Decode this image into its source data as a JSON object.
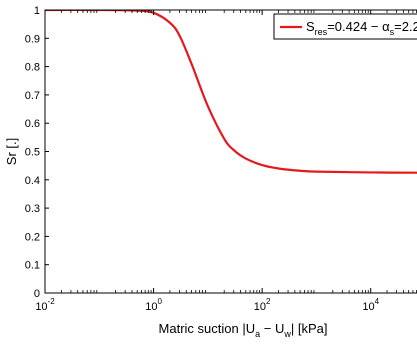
{
  "chart_data": {
    "type": "line",
    "x_scale": "log",
    "xlim": [
      0.01,
      100000
    ],
    "ylim": [
      0,
      1
    ],
    "xlabel": {
      "prefix": "Matric suction |U",
      "sub1": "a",
      "mid": " − U",
      "sub2": "w",
      "suffix": "| [kPa]"
    },
    "ylabel": "Sr [.]",
    "x_ticks": [
      {
        "value": 0.01,
        "base": "10",
        "exp": "-2"
      },
      {
        "value": 1,
        "base": "10",
        "exp": "0"
      },
      {
        "value": 100,
        "base": "10",
        "exp": "2"
      },
      {
        "value": 10000,
        "base": "10",
        "exp": "4"
      }
    ],
    "y_ticks": [
      {
        "value": 0,
        "label": "0"
      },
      {
        "value": 0.1,
        "label": "0.1"
      },
      {
        "value": 0.2,
        "label": "0.2"
      },
      {
        "value": 0.3,
        "label": "0.3"
      },
      {
        "value": 0.4,
        "label": "0.4"
      },
      {
        "value": 0.5,
        "label": "0.5"
      },
      {
        "value": 0.6,
        "label": "0.6"
      },
      {
        "value": 0.7,
        "label": "0.7"
      },
      {
        "value": 0.8,
        "label": "0.8"
      },
      {
        "value": 0.9,
        "label": "0.9"
      },
      {
        "value": 1,
        "label": "1"
      }
    ],
    "grid": false,
    "legend_position": "top-right",
    "series": [
      {
        "legend": {
          "p1": "S",
          "sub1": "res",
          "p2": "=0.424 − α",
          "sub2": "s",
          "p3": "=2.2"
        },
        "color": "#e31a1c",
        "x": [
          0.01,
          0.1,
          0.5,
          1,
          2,
          3,
          5,
          10,
          20,
          30,
          50,
          100,
          200,
          500,
          1000,
          10000,
          100000
        ],
        "y": [
          1.0,
          1.0,
          0.998,
          0.99,
          0.955,
          0.91,
          0.81,
          0.66,
          0.545,
          0.505,
          0.475,
          0.452,
          0.44,
          0.432,
          0.429,
          0.426,
          0.425
        ]
      }
    ]
  }
}
